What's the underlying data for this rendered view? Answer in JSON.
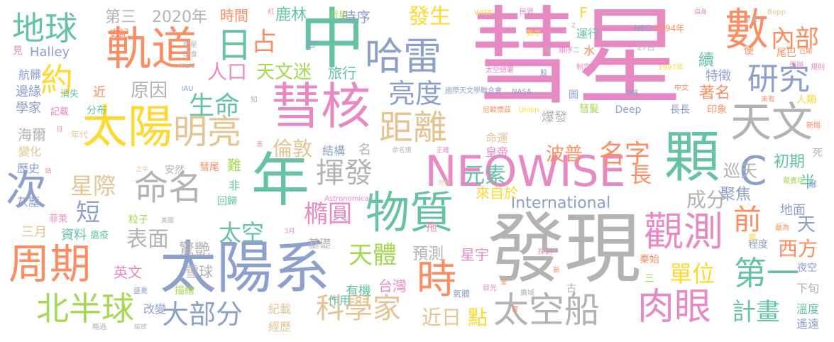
{
  "palette": {
    "pink": "#e78ac3",
    "gray": "#b3b3b3",
    "blue": "#8da0cb",
    "green": "#66c2a5",
    "orange": "#fc8d62",
    "lime": "#a6d854",
    "yellow": "#ffd92f",
    "tan": "#e5c494"
  },
  "words": [
    {
      "text": "彗星",
      "color": "pink"
    },
    {
      "text": "中",
      "color": "green"
    },
    {
      "text": "發現",
      "color": "gray"
    },
    {
      "text": "NEOWISE",
      "color": "pink"
    },
    {
      "text": "年",
      "color": "green"
    },
    {
      "text": "太陽系",
      "color": "blue"
    },
    {
      "text": "彗核",
      "color": "pink"
    },
    {
      "text": "顆",
      "color": "green"
    },
    {
      "text": "軌道",
      "color": "orange"
    },
    {
      "text": "太陽",
      "color": "yellow"
    },
    {
      "text": "物質",
      "color": "green"
    },
    {
      "text": "哈雷",
      "color": "blue"
    },
    {
      "text": "數",
      "color": "orange"
    },
    {
      "text": "周期",
      "color": "orange"
    },
    {
      "text": "觀測",
      "color": "pink"
    },
    {
      "text": "天文",
      "color": "gray"
    },
    {
      "text": "太空船",
      "color": "gray"
    },
    {
      "text": "肉眼",
      "color": "pink"
    },
    {
      "text": "次",
      "color": "blue"
    },
    {
      "text": "距離",
      "color": "tan"
    },
    {
      "text": "命名",
      "color": "gray"
    },
    {
      "text": "地球",
      "color": "green"
    },
    {
      "text": "北半球",
      "color": "lime"
    },
    {
      "text": "日",
      "color": "green"
    },
    {
      "text": "約",
      "color": "yellow"
    },
    {
      "text": "明亮",
      "color": "tan"
    },
    {
      "text": "研究",
      "color": "blue"
    },
    {
      "text": "亮度",
      "color": "blue"
    },
    {
      "text": "揮發",
      "color": "gray"
    },
    {
      "text": "科學家",
      "color": "tan"
    },
    {
      "text": "大部分",
      "color": "blue"
    },
    {
      "text": "時",
      "color": "orange"
    },
    {
      "text": "第一",
      "color": "green"
    },
    {
      "text": "C",
      "color": "blue"
    },
    {
      "text": "占",
      "color": "orange"
    },
    {
      "text": "內部",
      "color": "orange"
    },
    {
      "text": "發生",
      "color": "yellow"
    },
    {
      "text": "元素",
      "color": "green"
    },
    {
      "text": "名字",
      "color": "orange"
    },
    {
      "text": "單位",
      "color": "yellow"
    },
    {
      "text": "計畫",
      "color": "green"
    },
    {
      "text": "生命",
      "color": "green"
    },
    {
      "text": "天體",
      "color": "lime"
    },
    {
      "text": "橢圓",
      "color": "pink"
    },
    {
      "text": "星際",
      "color": "tan"
    },
    {
      "text": "太空",
      "color": "green"
    },
    {
      "text": "前",
      "color": "orange"
    },
    {
      "text": "人口",
      "color": "pink"
    },
    {
      "text": "天文迷",
      "color": "lime"
    },
    {
      "text": "倫敦",
      "color": "tan"
    },
    {
      "text": "International",
      "color": "blue"
    },
    {
      "text": "成分",
      "color": "gray"
    },
    {
      "text": "西方",
      "color": "orange"
    },
    {
      "text": "短",
      "color": "blue"
    },
    {
      "text": "表面",
      "color": "gray"
    },
    {
      "text": "長",
      "color": "orange"
    },
    {
      "text": "近日",
      "color": "tan"
    },
    {
      "text": "點",
      "color": "yellow"
    },
    {
      "text": "第三",
      "color": "gray"
    },
    {
      "text": "2020年",
      "color": "gray"
    },
    {
      "text": "時間",
      "color": "orange"
    },
    {
      "text": "鹿林",
      "color": "green"
    },
    {
      "text": "時序",
      "color": "blue"
    },
    {
      "text": "原因",
      "color": "gray"
    },
    {
      "text": "波普",
      "color": "orange"
    },
    {
      "text": "巡天",
      "color": "gray"
    },
    {
      "text": "聚焦",
      "color": "blue"
    },
    {
      "text": "初期",
      "color": "green"
    },
    {
      "text": "預測",
      "color": "gray"
    },
    {
      "text": "星宇",
      "color": "pink"
    },
    {
      "text": "台灣",
      "color": "pink"
    },
    {
      "text": "有機",
      "color": "green"
    },
    {
      "text": "英文",
      "color": "pink"
    },
    {
      "text": "驚艷",
      "color": "gray"
    },
    {
      "text": "雪球",
      "color": "gray"
    },
    {
      "text": "來自於",
      "color": "yellow"
    },
    {
      "text": "旅行",
      "color": "green"
    },
    {
      "text": "特徵",
      "color": "blue"
    },
    {
      "text": "著名",
      "color": "orange"
    },
    {
      "text": "地面",
      "color": "blue"
    },
    {
      "text": "Halley",
      "color": "blue"
    },
    {
      "text": "海爾",
      "color": "gray"
    },
    {
      "text": "學家",
      "color": "blue"
    },
    {
      "text": "邊緣",
      "color": "blue"
    },
    {
      "text": "資料",
      "color": "green"
    },
    {
      "text": "作用",
      "color": "green"
    },
    {
      "text": "基礎",
      "color": "gray"
    },
    {
      "text": "結構",
      "color": "blue"
    },
    {
      "text": "名",
      "color": "gray"
    },
    {
      "text": "運行",
      "color": "green"
    },
    {
      "text": "F",
      "color": "yellow"
    },
    {
      "text": "三月",
      "color": "tan"
    },
    {
      "text": "改變",
      "color": "blue"
    },
    {
      "text": "描繪",
      "color": "lime"
    },
    {
      "text": "紀載",
      "color": "tan"
    },
    {
      "text": "經歷",
      "color": "tan"
    },
    {
      "text": "溫度",
      "color": "green"
    },
    {
      "text": "遙遠",
      "color": "blue"
    },
    {
      "text": "下旬",
      "color": "gray"
    },
    {
      "text": "夜空",
      "color": "blue"
    },
    {
      "text": "程度",
      "color": "blue"
    },
    {
      "text": "爆發",
      "color": "gray"
    },
    {
      "text": "彗髮",
      "color": "lime"
    },
    {
      "text": "Deep",
      "color": "blue"
    },
    {
      "text": "長長",
      "color": "blue"
    },
    {
      "text": "印象",
      "color": "orange"
    },
    {
      "text": "命運",
      "color": "tan"
    },
    {
      "text": "皇帝",
      "color": "pink"
    },
    {
      "text": "天",
      "color": "blue"
    },
    {
      "text": "半",
      "color": "green"
    },
    {
      "text": "羅賓塔",
      "color": "lime"
    },
    {
      "text": "尾巴",
      "color": "orange"
    },
    {
      "text": "便",
      "color": "orange"
    },
    {
      "text": "航髒",
      "color": "blue"
    },
    {
      "text": "消失",
      "color": "green"
    },
    {
      "text": "近",
      "color": "orange"
    },
    {
      "text": "分布",
      "color": "green"
    },
    {
      "text": "記載",
      "color": "pink"
    },
    {
      "text": "年代",
      "color": "tan"
    },
    {
      "text": "變化",
      "color": "tan"
    },
    {
      "text": "歷史",
      "color": "blue"
    },
    {
      "text": "灰塵",
      "color": "blue"
    },
    {
      "text": "安然",
      "color": "gray"
    },
    {
      "text": "彗尾",
      "color": "orange"
    },
    {
      "text": "難",
      "color": "lime"
    },
    {
      "text": "非",
      "color": "green"
    },
    {
      "text": "回歸",
      "color": "green"
    },
    {
      "text": "粒子",
      "color": "lime"
    },
    {
      "text": "菲萊",
      "color": "pink"
    },
    {
      "text": "瘟疫",
      "color": "green"
    },
    {
      "text": "拖",
      "color": "pink"
    },
    {
      "text": "氣體",
      "color": "blue"
    },
    {
      "text": "秦始",
      "color": "orange"
    },
    {
      "text": "三",
      "color": "lime"
    },
    {
      "text": "古",
      "color": "gray"
    },
    {
      "text": "水",
      "color": "orange"
    },
    {
      "text": "四",
      "color": "blue"
    },
    {
      "text": "行星",
      "color": "lime"
    },
    {
      "text": "史記",
      "color": "orange"
    },
    {
      "text": "見",
      "color": "pink"
    },
    {
      "text": "人類",
      "color": "yellow"
    },
    {
      "text": "最為",
      "color": "orange"
    },
    {
      "text": "死",
      "color": "gray"
    },
    {
      "text": "鄰",
      "color": "blue"
    },
    {
      "text": "亮",
      "color": "yellow"
    },
    {
      "text": "NEO",
      "color": "blue"
    },
    {
      "text": "1994年",
      "color": "orange"
    },
    {
      "text": "27日",
      "color": "gray"
    },
    {
      "text": "1997年",
      "color": "yellow"
    },
    {
      "text": "國際天文學聯合會",
      "color": "blue"
    },
    {
      "text": "NASA",
      "color": "blue"
    },
    {
      "text": "尼歐懷茲",
      "color": "orange"
    },
    {
      "text": "Union",
      "color": "yellow"
    },
    {
      "text": "太空總署",
      "color": "pink"
    },
    {
      "text": "Astronomical",
      "color": "pink"
    },
    {
      "text": "WISE",
      "color": "yellow"
    },
    {
      "text": "民眾",
      "color": "pink"
    },
    {
      "text": "數字",
      "color": "yellow"
    },
    {
      "text": "順序",
      "color": "pink"
    },
    {
      "text": "制定",
      "color": "pink"
    },
    {
      "text": "股",
      "color": "blue"
    },
    {
      "text": "圖",
      "color": "blue"
    },
    {
      "text": "簡稱",
      "color": "blue"
    },
    {
      "text": "中文",
      "color": "orange"
    },
    {
      "text": "未有",
      "color": "orange"
    },
    {
      "text": "新聞",
      "color": "orange"
    },
    {
      "text": "規則",
      "color": "pink"
    },
    {
      "text": "學辦",
      "color": "pink"
    },
    {
      "text": "Bopp",
      "color": "tan"
    },
    {
      "text": "自身",
      "color": "pink"
    },
    {
      "text": "字母",
      "color": "gray"
    },
    {
      "text": "紅",
      "color": "pink"
    },
    {
      "text": "衛星",
      "color": "gray"
    },
    {
      "text": "環食",
      "color": "gray"
    },
    {
      "text": "Hale",
      "color": "gray"
    },
    {
      "text": "IAU",
      "color": "blue"
    },
    {
      "text": "知",
      "color": "gray"
    },
    {
      "text": "表",
      "color": "pink"
    },
    {
      "text": "月",
      "color": "pink"
    },
    {
      "text": "之中",
      "color": "tan"
    },
    {
      "text": "姑",
      "color": "pink"
    },
    {
      "text": "美國",
      "color": "gray"
    },
    {
      "text": "3月",
      "color": "pink"
    },
    {
      "text": "外線",
      "color": "tan"
    },
    {
      "text": "命名規",
      "color": "gray"
    },
    {
      "text": "正確",
      "color": "pink"
    },
    {
      "text": "探測",
      "color": "pink"
    },
    {
      "text": "目光",
      "color": "pink"
    },
    {
      "text": "新",
      "color": "orange"
    },
    {
      "text": "盛夏",
      "color": "blue"
    },
    {
      "text": "廣域",
      "color": "gray"
    },
    {
      "text": "星",
      "color": "orange"
    },
    {
      "text": "夏",
      "color": "orange"
    },
    {
      "text": "略過",
      "color": "gray"
    },
    {
      "text": "綻放",
      "color": "gray"
    },
    {
      "text": "寫",
      "color": "gray"
    },
    {
      "text": "二",
      "color": "green"
    },
    {
      "text": "日期",
      "color": "orange"
    },
    {
      "text": "Z",
      "color": "gray"
    },
    {
      "text": "續",
      "color": "green"
    }
  ]
}
